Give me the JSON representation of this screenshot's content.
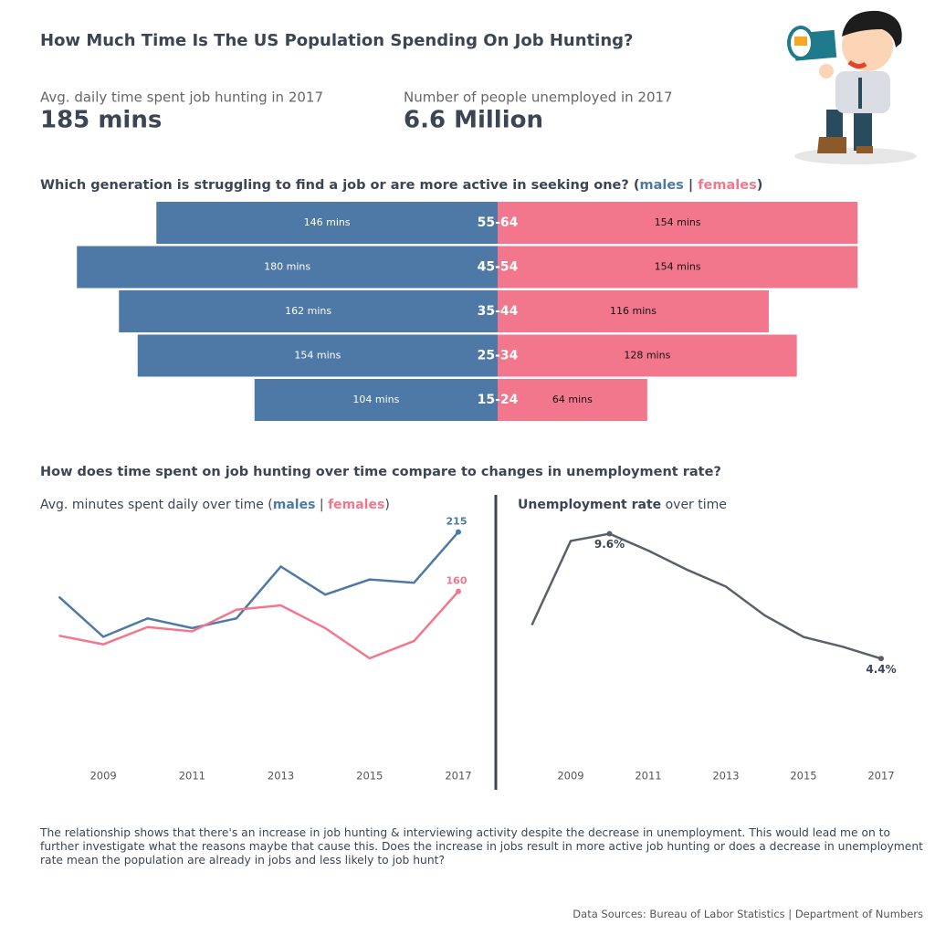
{
  "header": {
    "title": "How Much Time Is The US Population Spending On Job Hunting?"
  },
  "kpis": [
    {
      "label": "Avg. daily time spent job hunting in 2017",
      "value": "185 mins"
    },
    {
      "label": "Number of people unemployed in 2017",
      "value": "6.6 Million"
    }
  ],
  "section_title": "How does time spent on job hunting over time compare to changes in unemployment rate?",
  "chart_data": [
    {
      "type": "butterfly",
      "title": "Which generation is struggling to find a job or are more active in seeking one?",
      "categories": [
        "55-64",
        "45-54",
        "35-44",
        "25-34",
        "15-24"
      ],
      "series": [
        {
          "name": "males",
          "color": "#4e79a7",
          "values": [
            146,
            180,
            162,
            154,
            104
          ],
          "value_labels": [
            "146 mins",
            "180 mins",
            "162 mins",
            "154 mins",
            "104 mins"
          ]
        },
        {
          "name": "females",
          "color": "#f2778c",
          "values": [
            154,
            154,
            116,
            128,
            64
          ],
          "value_labels": [
            "154 mins",
            "154 mins",
            "116 mins",
            "128 mins",
            "64 mins"
          ]
        }
      ]
    },
    {
      "type": "line",
      "title": "Avg. minutes spent daily over time",
      "x": [
        2008,
        2009,
        2010,
        2011,
        2012,
        2013,
        2014,
        2015,
        2016,
        2017
      ],
      "xlim": [
        2008,
        2017
      ],
      "xticks": [
        2009,
        2011,
        2013,
        2015,
        2017
      ],
      "ylim": [
        0,
        240
      ],
      "series": [
        {
          "name": "males",
          "color": "#4e79a7",
          "values": [
            155,
            118,
            135,
            126,
            135,
            183,
            157,
            171,
            168,
            215
          ]
        },
        {
          "name": "females",
          "color": "#f2778c",
          "values": [
            119,
            111,
            127,
            123,
            143,
            147,
            126,
            98,
            114,
            160
          ]
        }
      ]
    },
    {
      "type": "line",
      "title_parts": [
        "Unemployment rate",
        "over time"
      ],
      "x": [
        2008,
        2009,
        2010,
        2011,
        2012,
        2013,
        2014,
        2015,
        2016,
        2017
      ],
      "xlim": [
        2008,
        2017
      ],
      "xticks": [
        2009,
        2011,
        2013,
        2015,
        2017
      ],
      "ylim": [
        0,
        10.8
      ],
      "series": [
        {
          "color": "#5a5f6a",
          "values": [
            5.8,
            9.3,
            9.6,
            8.9,
            8.1,
            7.4,
            6.2,
            5.3,
            4.9,
            4.4
          ],
          "value_labels": [
            null,
            null,
            "9.6%",
            null,
            null,
            null,
            null,
            null,
            null,
            "4.4%"
          ]
        }
      ]
    }
  ],
  "footer": {
    "note": "The relationship shows that there's an increase in job hunting & interviewing activity despite the decrease in unemployment. This would lead me on to further investigate what the reasons maybe that cause this. Does the increase in jobs result in more active job hunting or does a decrease in unemployment rate mean the population are already in jobs and less likely to job hunt?",
    "sources": "Data Sources: Bureau of Labor Statistics | Department of Numbers"
  }
}
